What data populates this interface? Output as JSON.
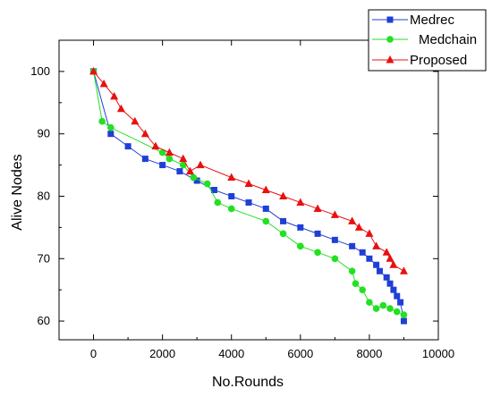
{
  "chart_data": {
    "type": "line",
    "xlabel": "No.Rounds",
    "ylabel": "Alive Nodes",
    "xlim": [
      -1000,
      10000
    ],
    "ylim": [
      57,
      105
    ],
    "x_ticks": [
      0,
      2000,
      4000,
      6000,
      8000,
      10000
    ],
    "y_ticks": [
      60,
      70,
      80,
      90,
      100
    ],
    "grid": false,
    "legend_position": "top-right",
    "series": [
      {
        "name": "Medrec",
        "color": "#1f3fd6",
        "marker": "square",
        "points": [
          [
            0,
            100
          ],
          [
            500,
            90
          ],
          [
            1000,
            88
          ],
          [
            1500,
            86
          ],
          [
            2000,
            85
          ],
          [
            2500,
            84
          ],
          [
            3000,
            82.5
          ],
          [
            3500,
            81
          ],
          [
            4000,
            80
          ],
          [
            4500,
            79
          ],
          [
            5000,
            78
          ],
          [
            5500,
            76
          ],
          [
            6000,
            75
          ],
          [
            6500,
            74
          ],
          [
            7000,
            73
          ],
          [
            7500,
            72
          ],
          [
            7800,
            71
          ],
          [
            8000,
            70
          ],
          [
            8200,
            69
          ],
          [
            8300,
            68
          ],
          [
            8500,
            67
          ],
          [
            8600,
            66
          ],
          [
            8700,
            65
          ],
          [
            8800,
            64
          ],
          [
            8900,
            63
          ],
          [
            9000,
            60
          ]
        ]
      },
      {
        "name": "Medchain",
        "color": "#22e022",
        "marker": "circle",
        "points": [
          [
            0,
            100
          ],
          [
            250,
            92
          ],
          [
            500,
            91
          ],
          [
            2000,
            87
          ],
          [
            2200,
            86
          ],
          [
            2600,
            85
          ],
          [
            2900,
            83
          ],
          [
            3300,
            82
          ],
          [
            3600,
            79
          ],
          [
            4000,
            78
          ],
          [
            5000,
            76
          ],
          [
            5500,
            74
          ],
          [
            6000,
            72
          ],
          [
            6500,
            71
          ],
          [
            7000,
            70
          ],
          [
            7500,
            68
          ],
          [
            7600,
            66
          ],
          [
            7800,
            65
          ],
          [
            8000,
            63
          ],
          [
            8200,
            62
          ],
          [
            8400,
            62.5
          ],
          [
            8600,
            62
          ],
          [
            8800,
            61.5
          ],
          [
            9000,
            61
          ]
        ]
      },
      {
        "name": "Proposed",
        "color": "#e81010",
        "marker": "triangle",
        "points": [
          [
            0,
            100
          ],
          [
            300,
            98
          ],
          [
            600,
            96
          ],
          [
            800,
            94
          ],
          [
            1200,
            92
          ],
          [
            1500,
            90
          ],
          [
            1800,
            88
          ],
          [
            2200,
            87
          ],
          [
            2600,
            86
          ],
          [
            2800,
            84
          ],
          [
            3100,
            85
          ],
          [
            4000,
            83
          ],
          [
            4500,
            82
          ],
          [
            5000,
            81
          ],
          [
            5500,
            80
          ],
          [
            6000,
            79
          ],
          [
            6500,
            78
          ],
          [
            7000,
            77
          ],
          [
            7500,
            76
          ],
          [
            7700,
            75
          ],
          [
            8000,
            74
          ],
          [
            8200,
            72
          ],
          [
            8500,
            71
          ],
          [
            8600,
            70
          ],
          [
            8700,
            69
          ],
          [
            9000,
            68
          ]
        ]
      }
    ]
  }
}
